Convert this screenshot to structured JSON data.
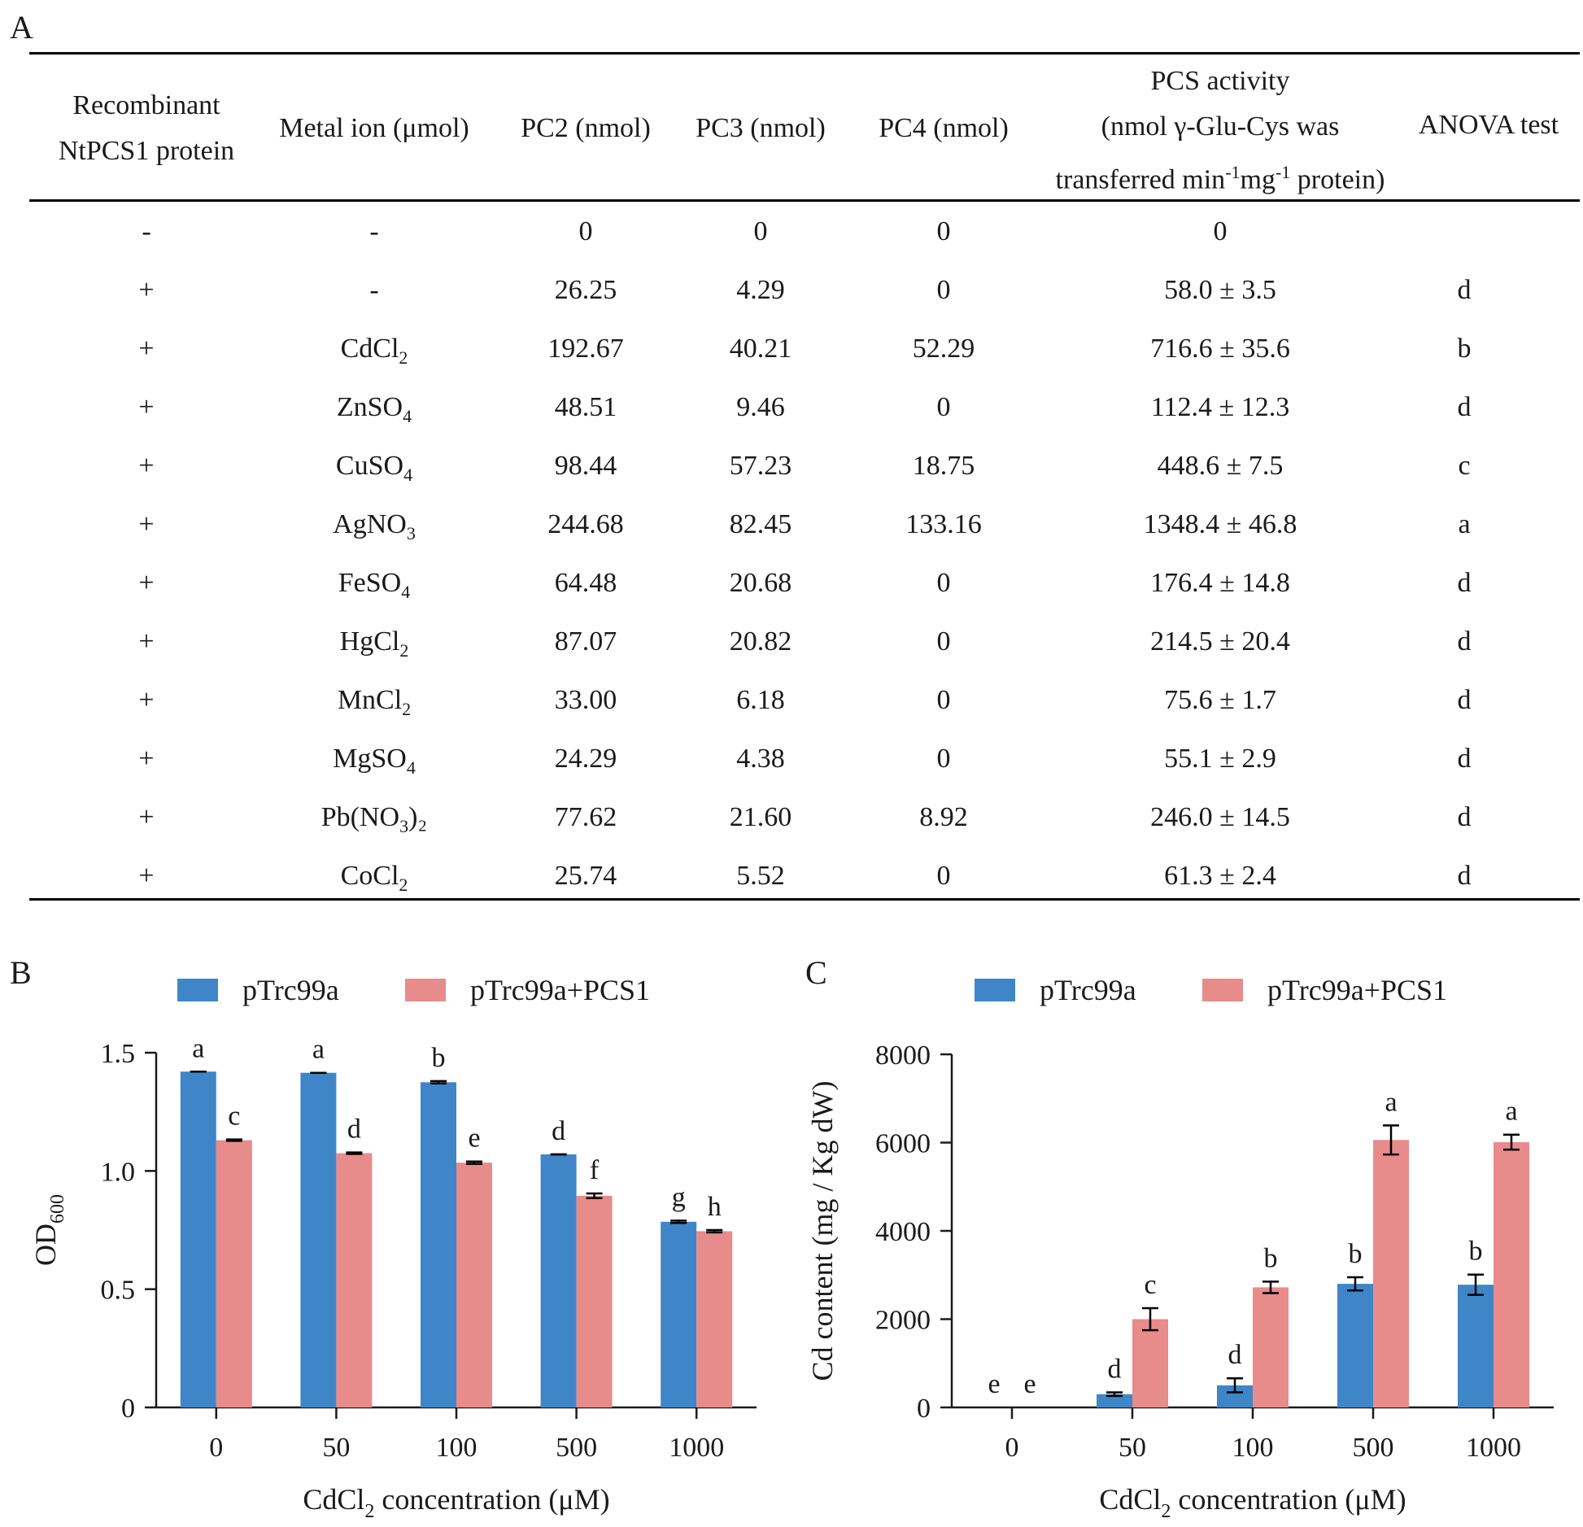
{
  "panel_a": {
    "letter": "A",
    "headers": {
      "protein": [
        "Recombinant",
        "NtPCS1 protein"
      ],
      "metal": "Metal ion (μmol)",
      "pc2": "PC2 (nmol)",
      "pc3": "PC3 (nmol)",
      "pc4": "PC4 (nmol)",
      "activity_1": "PCS activity",
      "activity_2": "(nmol γ-Glu-Cys was",
      "activity_3a": "transferred min",
      "activity_sup1": "-1",
      "activity_3b": "mg",
      "activity_sup2": "-1",
      "activity_3c": " protein)",
      "anova": "ANOVA test"
    },
    "rows": [
      {
        "protein": "-",
        "metal": "-",
        "metal_sub": "",
        "metal_tail": "",
        "pc2": "0",
        "pc3": "0",
        "pc4": "0",
        "activity": "0",
        "anova": ""
      },
      {
        "protein": "+",
        "metal": "-",
        "metal_sub": "",
        "metal_tail": "",
        "pc2": "26.25",
        "pc3": "4.29",
        "pc4": "0",
        "activity": "58.0 ± 3.5",
        "anova": "d"
      },
      {
        "protein": "+",
        "metal": "CdCl",
        "metal_sub": "2",
        "metal_tail": "",
        "pc2": "192.67",
        "pc3": "40.21",
        "pc4": "52.29",
        "activity": "716.6 ± 35.6",
        "anova": "b"
      },
      {
        "protein": "+",
        "metal": "ZnSO",
        "metal_sub": "4",
        "metal_tail": "",
        "pc2": "48.51",
        "pc3": "9.46",
        "pc4": "0",
        "activity": "112.4 ± 12.3",
        "anova": "d"
      },
      {
        "protein": "+",
        "metal": "CuSO",
        "metal_sub": "4",
        "metal_tail": "",
        "pc2": "98.44",
        "pc3": "57.23",
        "pc4": "18.75",
        "activity": "448.6 ± 7.5",
        "anova": "c"
      },
      {
        "protein": "+",
        "metal": "AgNO",
        "metal_sub": "3",
        "metal_tail": "",
        "pc2": "244.68",
        "pc3": "82.45",
        "pc4": "133.16",
        "activity": "1348.4 ± 46.8",
        "anova": "a"
      },
      {
        "protein": "+",
        "metal": "FeSO",
        "metal_sub": "4",
        "metal_tail": "",
        "pc2": "64.48",
        "pc3": "20.68",
        "pc4": "0",
        "activity": "176.4 ± 14.8",
        "anova": "d"
      },
      {
        "protein": "+",
        "metal": "HgCl",
        "metal_sub": "2",
        "metal_tail": "",
        "pc2": "87.07",
        "pc3": "20.82",
        "pc4": "0",
        "activity": "214.5 ± 20.4",
        "anova": "d"
      },
      {
        "protein": "+",
        "metal": "MnCl",
        "metal_sub": "2",
        "metal_tail": "",
        "pc2": "33.00",
        "pc3": "6.18",
        "pc4": "0",
        "activity": "75.6 ± 1.7",
        "anova": "d"
      },
      {
        "protein": "+",
        "metal": "MgSO",
        "metal_sub": "4",
        "metal_tail": "",
        "pc2": "24.29",
        "pc3": "4.38",
        "pc4": "0",
        "activity": "55.1 ± 2.9",
        "anova": "d"
      },
      {
        "protein": "+",
        "metal": "Pb(NO",
        "metal_sub": "3",
        "metal_tail": ")₂",
        "pc2": "77.62",
        "pc3": "21.60",
        "pc4": "8.92",
        "activity": "246.0 ± 14.5",
        "anova": "d"
      },
      {
        "protein": "+",
        "metal": "CoCl",
        "metal_sub": "2",
        "metal_tail": "",
        "pc2": "25.74",
        "pc3": "5.52",
        "pc4": "0",
        "activity": "61.3 ± 2.4",
        "anova": "d"
      }
    ]
  },
  "colors": {
    "blue": "#3f86c8",
    "pink": "#e88b8b",
    "axis": "#1a1a1a"
  },
  "chart_data": [
    {
      "panel": "B",
      "type": "bar",
      "categories": [
        "0",
        "50",
        "100",
        "500",
        "1000"
      ],
      "series": [
        {
          "name": "pTrc99a",
          "values": [
            1.42,
            1.415,
            1.375,
            1.07,
            0.785
          ],
          "errors": [
            0,
            0,
            0.005,
            0,
            0.005
          ],
          "labels": [
            "a",
            "a",
            "b",
            "d",
            "g"
          ]
        },
        {
          "name": "pTrc99a+PCS1",
          "values": [
            1.13,
            1.075,
            1.035,
            0.895,
            0.745
          ],
          "errors": [
            0.003,
            0.003,
            0.005,
            0.01,
            0.005
          ],
          "labels": [
            "c",
            "d",
            "e",
            "f",
            "h"
          ]
        }
      ],
      "ylabel": "OD",
      "ylabel_sub": "600",
      "xlabel": "CdCl",
      "xlabel_sub": "2",
      "xlabel_tail": " concentration (μM)",
      "ylim": [
        0,
        1.5
      ],
      "yticks": [
        0,
        0.5,
        1.0,
        1.5
      ],
      "ytick_labels": [
        "0",
        "0.5",
        "1.0",
        "1.5"
      ]
    },
    {
      "panel": "C",
      "type": "bar",
      "categories": [
        "0",
        "50",
        "100",
        "500",
        "1000"
      ],
      "series": [
        {
          "name": "pTrc99a",
          "values": [
            0,
            300,
            500,
            2800,
            2780
          ],
          "errors": [
            0,
            40,
            160,
            150,
            230
          ],
          "labels": [
            "e",
            "d",
            "d",
            "b",
            "b"
          ]
        },
        {
          "name": "pTrc99a+PCS1",
          "values": [
            0,
            2000,
            2720,
            6060,
            6010
          ],
          "errors": [
            0,
            250,
            130,
            330,
            170
          ],
          "labels": [
            "e",
            "c",
            "b",
            "a",
            "a"
          ]
        }
      ],
      "ylabel": "Cd content (mg / Kg dW)",
      "xlabel": "CdCl",
      "xlabel_sub": "2",
      "xlabel_tail": " concentration (μM)",
      "ylim": [
        0,
        8000
      ],
      "yticks": [
        0,
        2000,
        4000,
        6000,
        8000
      ],
      "ytick_labels": [
        "0",
        "2000",
        "4000",
        "6000",
        "8000"
      ]
    }
  ]
}
